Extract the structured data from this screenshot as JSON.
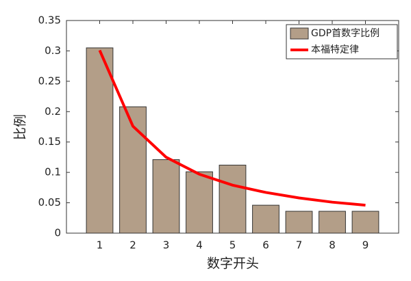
{
  "chart_data": {
    "type": "bar",
    "x": [
      1,
      2,
      3,
      4,
      5,
      6,
      7,
      8,
      9
    ],
    "xlim": [
      0,
      10
    ],
    "xticks": [
      1,
      2,
      3,
      4,
      5,
      6,
      7,
      8,
      9
    ],
    "ylim": [
      0,
      0.35
    ],
    "yticks": [
      0,
      0.05,
      0.1,
      0.15,
      0.2,
      0.25,
      0.3,
      0.35
    ],
    "x_label": "数字开头",
    "y_label": "比例",
    "legend": "top-right",
    "series": [
      {
        "name": "GDP首数字比例",
        "type": "bar",
        "color": "#b39e88",
        "values": [
          0.305,
          0.208,
          0.121,
          0.101,
          0.112,
          0.046,
          0.036,
          0.036,
          0.036
        ]
      },
      {
        "name": "本福特定律",
        "type": "line",
        "color": "#ff0000",
        "values": [
          0.301,
          0.176,
          0.125,
          0.097,
          0.079,
          0.067,
          0.058,
          0.051,
          0.046
        ]
      }
    ]
  }
}
